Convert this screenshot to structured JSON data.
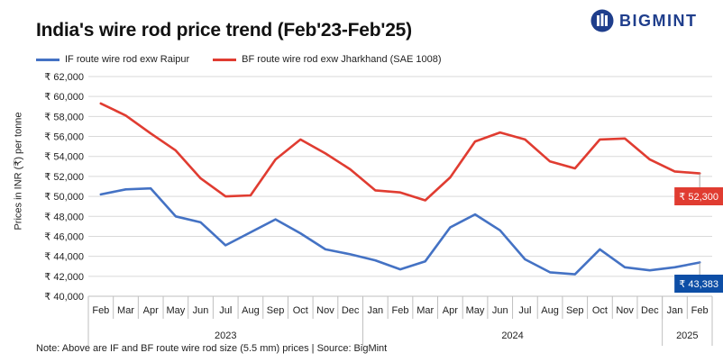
{
  "header": {
    "title": "India's wire rod price trend (Feb'23-Feb'25)",
    "brand": "BIGMINT"
  },
  "footer": {
    "note": "Note: Above are IF and BF route wire rod size (5.5 mm) prices  | Source: BigMint"
  },
  "colors": {
    "if_series": "#4472c4",
    "bf_series": "#e03c31",
    "if_label_bg": "#0d4ea6",
    "bf_label_bg": "#e03c31",
    "brand": "#1f3e8c"
  },
  "chart_data": {
    "type": "line",
    "ylabel": "Prices in INR (₹) per tonne",
    "ylim": [
      40000,
      62000
    ],
    "yticks": [
      40000,
      42000,
      44000,
      46000,
      48000,
      50000,
      52000,
      54000,
      56000,
      58000,
      60000,
      62000
    ],
    "ytick_labels": [
      "₹ 40,000",
      "₹ 42,000",
      "₹ 44,000",
      "₹ 46,000",
      "₹ 48,000",
      "₹ 50,000",
      "₹ 52,000",
      "₹ 54,000",
      "₹ 56,000",
      "₹ 58,000",
      "₹ 60,000",
      "₹ 62,000"
    ],
    "categories": [
      "Feb",
      "Mar",
      "Apr",
      "May",
      "Jun",
      "Jul",
      "Aug",
      "Sep",
      "Oct",
      "Nov",
      "Dec",
      "Jan",
      "Feb",
      "Mar",
      "Apr",
      "May",
      "Jun",
      "Jul",
      "Aug",
      "Sep",
      "Oct",
      "Nov",
      "Dec",
      "Jan",
      "Feb"
    ],
    "year_groups": [
      {
        "label": "2023",
        "count": 11
      },
      {
        "label": "2024",
        "count": 12
      },
      {
        "label": "2025",
        "count": 2
      }
    ],
    "grid": "horizontal",
    "legend": "top-left",
    "series": [
      {
        "name": "IF route wire rod exw Raipur",
        "values": [
          50200,
          50700,
          50800,
          48000,
          47400,
          45100,
          46400,
          47700,
          46300,
          44700,
          44200,
          43600,
          42700,
          43500,
          46900,
          48200,
          46600,
          43700,
          42400,
          42200,
          44700,
          42900,
          42600,
          42900,
          43383
        ],
        "end_label": "₹ 43,383"
      },
      {
        "name": "BF route wire rod exw Jharkhand (SAE 1008)",
        "values": [
          59300,
          58100,
          56300,
          54600,
          51800,
          50000,
          50100,
          53700,
          55700,
          54300,
          52700,
          50600,
          50400,
          49600,
          51900,
          55500,
          56400,
          55700,
          53500,
          52800,
          55700,
          55800,
          53700,
          52500,
          52300
        ],
        "end_label": "₹ 52,300"
      }
    ]
  }
}
